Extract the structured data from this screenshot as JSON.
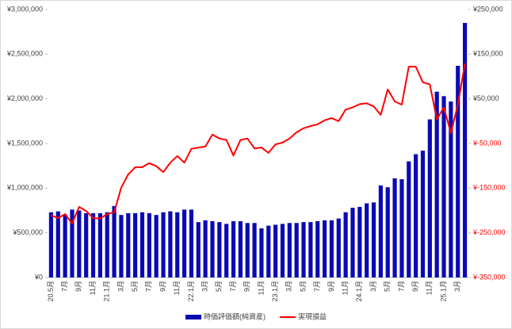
{
  "chart_data": {
    "type": "bar_line",
    "categories": [
      "20.5月",
      null,
      "7月",
      null,
      "9月",
      null,
      "11月",
      null,
      "21.1月",
      null,
      "3月",
      null,
      "5月",
      null,
      "7月",
      null,
      "9月",
      null,
      "11月",
      null,
      "22.1月",
      null,
      "3月",
      null,
      "5月",
      null,
      "7月",
      null,
      "9月",
      null,
      "11月",
      null,
      "23.1月",
      null,
      "3月",
      null,
      "5月",
      null,
      "7月",
      null,
      "9月",
      null,
      "11月",
      null,
      "24.1月",
      null,
      "3月",
      null,
      "5月",
      null,
      "7月",
      null,
      "9月",
      null,
      "11月",
      null,
      "25.1月",
      null,
      "3月",
      null
    ],
    "series": [
      {
        "name": "時価評価額(純資産)",
        "color": "#0a0ab4",
        "kind": "bar",
        "values": [
          730000,
          740000,
          700000,
          760000,
          750000,
          720000,
          720000,
          720000,
          730000,
          800000,
          700000,
          720000,
          720000,
          730000,
          720000,
          700000,
          730000,
          740000,
          730000,
          760000,
          760000,
          620000,
          640000,
          630000,
          620000,
          600000,
          630000,
          630000,
          610000,
          610000,
          550000,
          580000,
          590000,
          600000,
          610000,
          610000,
          620000,
          620000,
          630000,
          640000,
          640000,
          660000,
          730000,
          780000,
          790000,
          830000,
          840000,
          1030000,
          1010000,
          1110000,
          1100000,
          1300000,
          1380000,
          1420000,
          1770000,
          2080000,
          2030000,
          1970000,
          2370000,
          2850000
        ]
      },
      {
        "name": "実現損益",
        "color": "#ff0000",
        "kind": "line",
        "axis": "y2",
        "values": [
          -211000,
          -217000,
          -208000,
          -229000,
          -192000,
          -201000,
          -217000,
          -218000,
          -208000,
          -204000,
          -149000,
          -119000,
          -103000,
          -103000,
          -94000,
          -101000,
          -114000,
          -93000,
          -78000,
          -93000,
          -62000,
          -59000,
          -57000,
          -30000,
          -39000,
          -42000,
          -77000,
          -42000,
          -39000,
          -61000,
          -59000,
          -71000,
          -52000,
          -48000,
          -39000,
          -25000,
          -16000,
          -11000,
          -7000,
          2000,
          7000,
          0,
          26000,
          31000,
          38000,
          40000,
          33000,
          14000,
          71000,
          44000,
          37000,
          122000,
          122000,
          87000,
          82000,
          4000,
          31000,
          -27000,
          37000,
          129000
        ]
      }
    ],
    "ylim": [
      0,
      3000000
    ],
    "yticks": [
      {
        "value": 0,
        "label": "¥0"
      },
      {
        "value": 500000,
        "label": "¥500,000"
      },
      {
        "value": 1000000,
        "label": "¥1,000,000"
      },
      {
        "value": 1500000,
        "label": "¥1,500,000"
      },
      {
        "value": 2000000,
        "label": "¥2,000,000"
      },
      {
        "value": 2500000,
        "label": "¥2,500,000"
      },
      {
        "value": 3000000,
        "label": "¥3,000,000"
      }
    ],
    "y2lim": [
      -350000,
      250000
    ],
    "y2ticks": [
      {
        "value": -350000,
        "label": "¥-350,000"
      },
      {
        "value": -250000,
        "label": "¥-250,000"
      },
      {
        "value": -150000,
        "label": "¥-150,000"
      },
      {
        "value": -50000,
        "label": "¥-50,000"
      },
      {
        "value": 50000,
        "label": "¥50,000"
      },
      {
        "value": 150000,
        "label": "¥150,000"
      },
      {
        "value": 250000,
        "label": "¥250,000"
      }
    ],
    "y2_negative_color": "#ff0000",
    "grid": false,
    "legend": "bottom"
  }
}
